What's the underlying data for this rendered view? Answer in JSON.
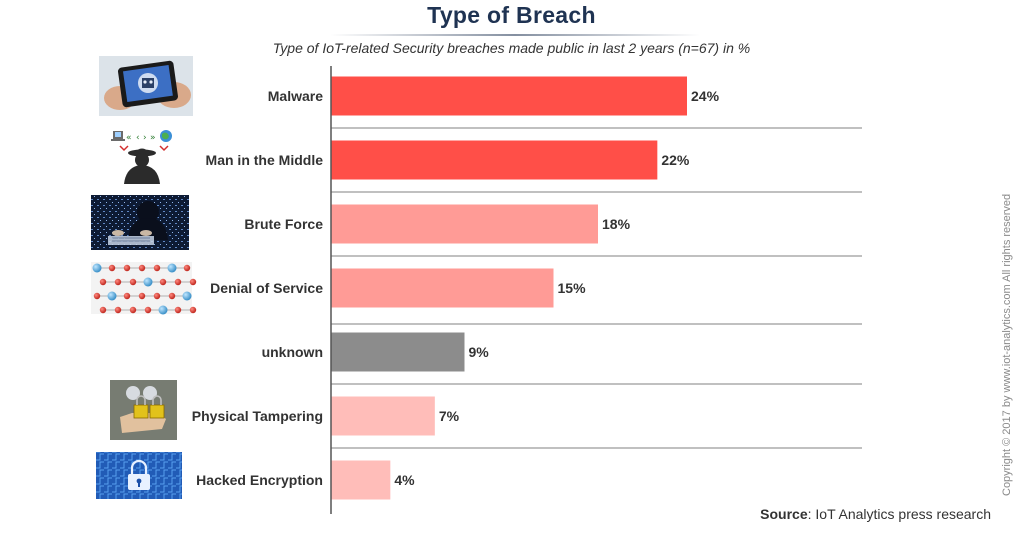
{
  "chart_data": {
    "type": "bar",
    "orientation": "horizontal",
    "title": "Type of Breach",
    "subtitle": "Type of IoT-related Security breaches made public in last 2 years (n=67) in %",
    "categories": [
      "Malware",
      "Man in the Middle",
      "Brute Force",
      "Denial of Service",
      "unknown",
      "Physical Tampering",
      "Hacked Encryption"
    ],
    "values": [
      24,
      22,
      18,
      15,
      9,
      7,
      4
    ],
    "value_labels": [
      "24%",
      "22%",
      "18%",
      "15%",
      "9%",
      "7%",
      "4%"
    ],
    "bar_colors": [
      "#ff4f48",
      "#ff4f48",
      "#ff9b96",
      "#ff9b96",
      "#8c8c8c",
      "#ffbdb9",
      "#ffbdb9"
    ],
    "xlim": [
      0,
      40
    ],
    "grid": "horizontal separators between categories",
    "legend": "none"
  },
  "icons": [
    "smartphone-virus-icon",
    "hacker-interception-icon",
    "hacker-keyboard-icon",
    "network-molecule-icon",
    "",
    "padlock-hand-icon",
    "digital-lock-icon"
  ],
  "source": {
    "label": "Source",
    "text": ": IoT Analytics press research"
  },
  "copyright": "Copyright © 2017 by www.iot-analytics.com All rights reserved"
}
